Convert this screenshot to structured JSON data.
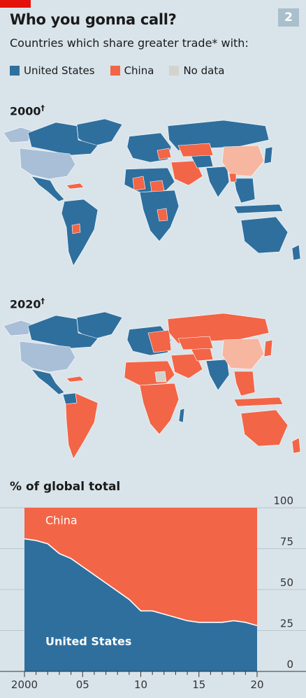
{
  "header": {
    "title": "Who you gonna call?",
    "subtitle": "Countries which share greater trade* with:",
    "badge": "2"
  },
  "legend": {
    "items": [
      {
        "label": "United States",
        "color": "#2e6f9e"
      },
      {
        "label": "China",
        "color": "#f26546"
      },
      {
        "label": "No data",
        "color": "#d3d3cd"
      }
    ]
  },
  "maps": [
    {
      "label": "2000",
      "marker": "†",
      "dominant": "United States"
    },
    {
      "label": "2020",
      "marker": "†",
      "dominant": "China"
    }
  ],
  "colors": {
    "us": "#2e6f9e",
    "china": "#f26546",
    "us_itself": "#a9bfd8",
    "china_itself": "#f7b6a0",
    "background": "#d9e4ea"
  },
  "chart_title": "% of global total",
  "chart_data": {
    "type": "area",
    "title": "% of global total",
    "x": [
      2000,
      2001,
      2002,
      2003,
      2004,
      2005,
      2006,
      2007,
      2008,
      2009,
      2010,
      2011,
      2012,
      2013,
      2014,
      2015,
      2016,
      2017,
      2018,
      2019,
      2020
    ],
    "series": [
      {
        "name": "United States",
        "values": [
          81,
          80,
          78,
          72,
          69,
          64,
          59,
          54,
          49,
          44,
          37,
          37,
          35,
          33,
          31,
          30,
          30,
          30,
          31,
          30,
          28
        ]
      },
      {
        "name": "China",
        "values": [
          19,
          20,
          22,
          28,
          31,
          36,
          41,
          46,
          51,
          56,
          63,
          63,
          65,
          67,
          69,
          70,
          70,
          70,
          69,
          70,
          72
        ]
      }
    ],
    "stacked": true,
    "xticks": [
      "2000",
      "05",
      "10",
      "15",
      "20"
    ],
    "yticks": [
      "0",
      "25",
      "50",
      "75",
      "100"
    ],
    "ylim": [
      0,
      100
    ],
    "xlim": [
      2000,
      2020
    ],
    "grid": true
  }
}
